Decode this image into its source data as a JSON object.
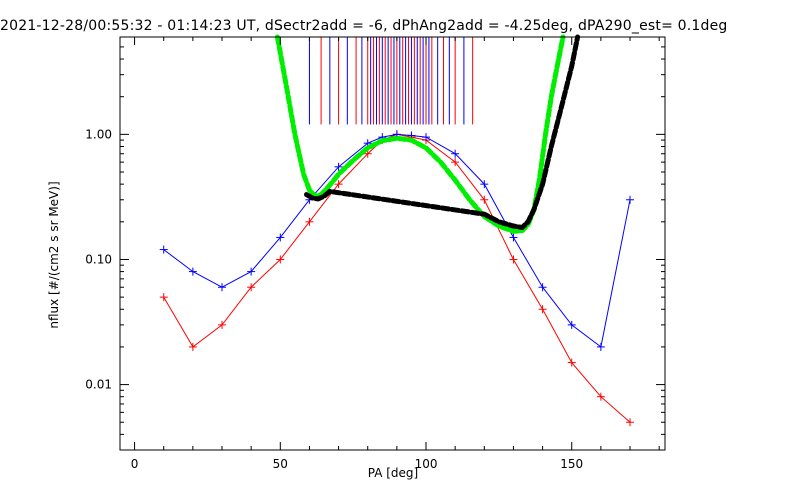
{
  "chart_data": {
    "type": "line",
    "title": "2021-12-28/00:55:32 - 01:14:23 UT, dSectr2add = -6, dPhAng2add = -4.25deg, dPA290_est=   0.1deg",
    "xlabel": "PA [deg]",
    "ylabel": "nflux [#/(cm2 s sr MeV)]",
    "xlim": [
      -5,
      182
    ],
    "ylim": [
      0.003,
      6.0
    ],
    "yscale": "log",
    "xticks": [
      0,
      50,
      100,
      150
    ],
    "xtick_labels": [
      "0",
      "50",
      "100",
      "150"
    ],
    "yticks": [
      0.01,
      0.1,
      1.0
    ],
    "ytick_labels": [
      "0.01",
      "0.10",
      "1.00"
    ],
    "grid": false,
    "legend": "none",
    "colors": {
      "red": "#ff0000",
      "blue": "#0000ff",
      "green": "#00ee00",
      "black": "#000000"
    },
    "series": [
      {
        "color": "red",
        "style": "lines+plus-markers",
        "x": [
          10,
          20,
          30,
          40,
          50,
          60,
          70,
          80,
          85,
          90,
          95,
          100,
          110,
          120,
          130,
          140,
          150,
          160,
          170
        ],
        "values": [
          0.05,
          0.02,
          0.03,
          0.06,
          0.1,
          0.2,
          0.4,
          0.7,
          0.9,
          1.0,
          0.95,
          0.9,
          0.6,
          0.3,
          0.1,
          0.04,
          0.015,
          0.008,
          0.005
        ]
      },
      {
        "color": "blue",
        "style": "lines+plus-markers",
        "x": [
          10,
          20,
          30,
          40,
          50,
          60,
          70,
          80,
          85,
          90,
          95,
          100,
          110,
          120,
          130,
          140,
          150,
          160,
          170
        ],
        "values": [
          0.12,
          0.08,
          0.06,
          0.08,
          0.15,
          0.3,
          0.55,
          0.85,
          0.95,
          1.0,
          0.98,
          0.95,
          0.7,
          0.4,
          0.15,
          0.06,
          0.03,
          0.02,
          0.3
        ]
      },
      {
        "color": "green",
        "style": "thick-dashed",
        "x": [
          49,
          52,
          55,
          58,
          60,
          62,
          64,
          66,
          68,
          70,
          75,
          80,
          85,
          90,
          95,
          100,
          105,
          110,
          115,
          120,
          125,
          130,
          133,
          135,
          137,
          139,
          141,
          143,
          145,
          147
        ],
        "values": [
          6.0,
          2.5,
          1.0,
          0.48,
          0.36,
          0.32,
          0.33,
          0.37,
          0.42,
          0.48,
          0.62,
          0.78,
          0.89,
          0.93,
          0.9,
          0.78,
          0.6,
          0.43,
          0.3,
          0.22,
          0.185,
          0.168,
          0.17,
          0.19,
          0.25,
          0.45,
          1.0,
          2.0,
          3.5,
          6.0
        ]
      },
      {
        "color": "black",
        "style": "thick-dashed",
        "x": [
          59,
          61,
          63,
          65,
          67,
          120,
          125,
          130,
          133,
          135,
          137,
          140,
          143,
          146,
          150,
          152
        ],
        "values": [
          0.33,
          0.31,
          0.305,
          0.32,
          0.35,
          0.23,
          0.2,
          0.185,
          0.18,
          0.2,
          0.25,
          0.4,
          0.8,
          1.5,
          3.5,
          6.0
        ]
      }
    ],
    "vertical_markers": {
      "description_values_deg": [
        60,
        64,
        67,
        70,
        73,
        76,
        78,
        80,
        81,
        82,
        83,
        84,
        85,
        86,
        87,
        88,
        89,
        90,
        91,
        92,
        93,
        94,
        95,
        96,
        97,
        98,
        99,
        100,
        101,
        102,
        104,
        106,
        108,
        110,
        113,
        116
      ],
      "colors": [
        "blue",
        "red"
      ],
      "top": 6.0,
      "bottom": 1.2
    }
  }
}
